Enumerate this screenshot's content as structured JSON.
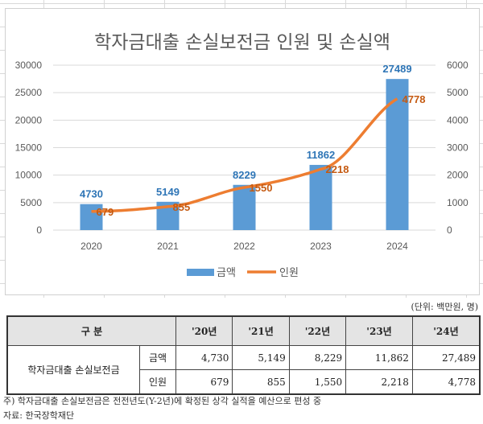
{
  "chart_data": {
    "type": "bar+line",
    "title": "학자금대출 손실보전금 인원 및 손실액",
    "categories": [
      "2020",
      "2021",
      "2022",
      "2023",
      "2024"
    ],
    "series": [
      {
        "name": "금액",
        "type": "bar",
        "axis": "left",
        "color": "#5B9BD5",
        "label_color": "#2E75B6",
        "values": [
          4730,
          5149,
          8229,
          11862,
          27489
        ]
      },
      {
        "name": "인원",
        "type": "line",
        "axis": "right",
        "color": "#ED7D31",
        "label_color": "#C55A11",
        "values": [
          679,
          855,
          1550,
          2218,
          4778
        ]
      }
    ],
    "left_axis": {
      "ylim": [
        0,
        30000
      ],
      "ticks": [
        0,
        5000,
        10000,
        15000,
        20000,
        25000,
        30000
      ]
    },
    "right_axis": {
      "ylim": [
        0,
        6000
      ],
      "ticks": [
        0,
        1000,
        2000,
        3000,
        4000,
        5000,
        6000
      ]
    },
    "grid": true,
    "legend": "bottom"
  },
  "table": {
    "unit": "(단위: 백만원, 명)",
    "header": [
      "구 분",
      "'20년",
      "'21년",
      "'22년",
      "'23년",
      "'24년"
    ],
    "row_group": "학자금대출 손실보전금",
    "rows": [
      {
        "label": "금액",
        "values": [
          "4,730",
          "5,149",
          "8,229",
          "11,862",
          "27,489"
        ]
      },
      {
        "label": "인원",
        "values": [
          "679",
          "855",
          "1,550",
          "2,218",
          "4,778"
        ]
      }
    ],
    "note": "주) 학자금대출 손실보전금은 전전년도(Y-2년)에 확정된 상각 실적을 예산으로 편성 중",
    "source": "자료: 한국장학재단"
  }
}
